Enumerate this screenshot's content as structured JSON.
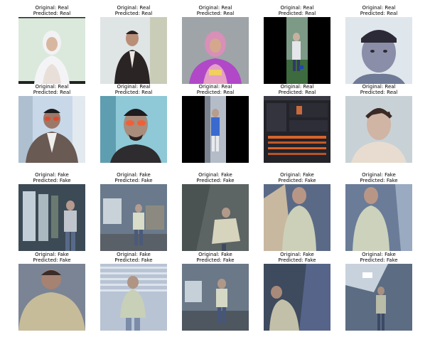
{
  "figure": {
    "rows": [
      {
        "cells": [
          {
            "original": "Original: Real",
            "predicted": "Predicted: Real",
            "scene": "woman-in-white-hijab"
          },
          {
            "original": "Original: Real",
            "predicted": "Predicted: Real",
            "scene": "man-in-dark-suit"
          },
          {
            "original": "Original: Real",
            "predicted": "Predicted: Real",
            "scene": "woman-in-pink-hijab-purple-top"
          },
          {
            "original": "Original: Real",
            "predicted": "Predicted: Real",
            "scene": "person-standing-on-grass-letterboxed"
          },
          {
            "original": "Original: Real",
            "predicted": "Predicted: Real",
            "scene": "man-with-cap-closeup"
          }
        ]
      },
      {
        "cells": [
          {
            "original": "Original: Real",
            "predicted": "Predicted: Real",
            "scene": "man-with-glasses-in-blazer"
          },
          {
            "original": "Original: Real",
            "predicted": "Predicted: Real",
            "scene": "man-with-orange-glasses"
          },
          {
            "original": "Original: Real",
            "predicted": "Predicted: Real",
            "scene": "person-in-hallway-letterboxed"
          },
          {
            "original": "Original: Real",
            "predicted": "Predicted: Real",
            "scene": "software-interface-screenshot"
          },
          {
            "original": "Original: Real",
            "predicted": "Predicted: Real",
            "scene": "young-man-closeup"
          }
        ]
      },
      {
        "cells": [
          {
            "original": "Original: Fake",
            "predicted": "Predicted: Fake",
            "scene": "person-by-window"
          },
          {
            "original": "Original: Fake",
            "predicted": "Predicted: Fake",
            "scene": "person-in-room-wide"
          },
          {
            "original": "Original: Fake",
            "predicted": "Predicted: Fake",
            "scene": "person-tilted-frame"
          },
          {
            "original": "Original: Fake",
            "predicted": "Predicted: Fake",
            "scene": "person-low-angle"
          },
          {
            "original": "Original: Fake",
            "predicted": "Predicted: Fake",
            "scene": "person-low-angle-2"
          }
        ]
      },
      {
        "cells": [
          {
            "original": "Original: Fake",
            "predicted": "Predicted: Fake",
            "scene": "person-closeup-low"
          },
          {
            "original": "Original: Fake",
            "predicted": "Predicted: Fake",
            "scene": "person-under-blinds"
          },
          {
            "original": "Original: Fake",
            "predicted": "Predicted: Fake",
            "scene": "person-in-room-wide-2"
          },
          {
            "original": "Original: Fake",
            "predicted": "Predicted: Fake",
            "scene": "person-dark-angle"
          },
          {
            "original": "Original: Fake",
            "predicted": "Predicted: Fake",
            "scene": "person-under-ceiling-light"
          }
        ]
      }
    ]
  }
}
